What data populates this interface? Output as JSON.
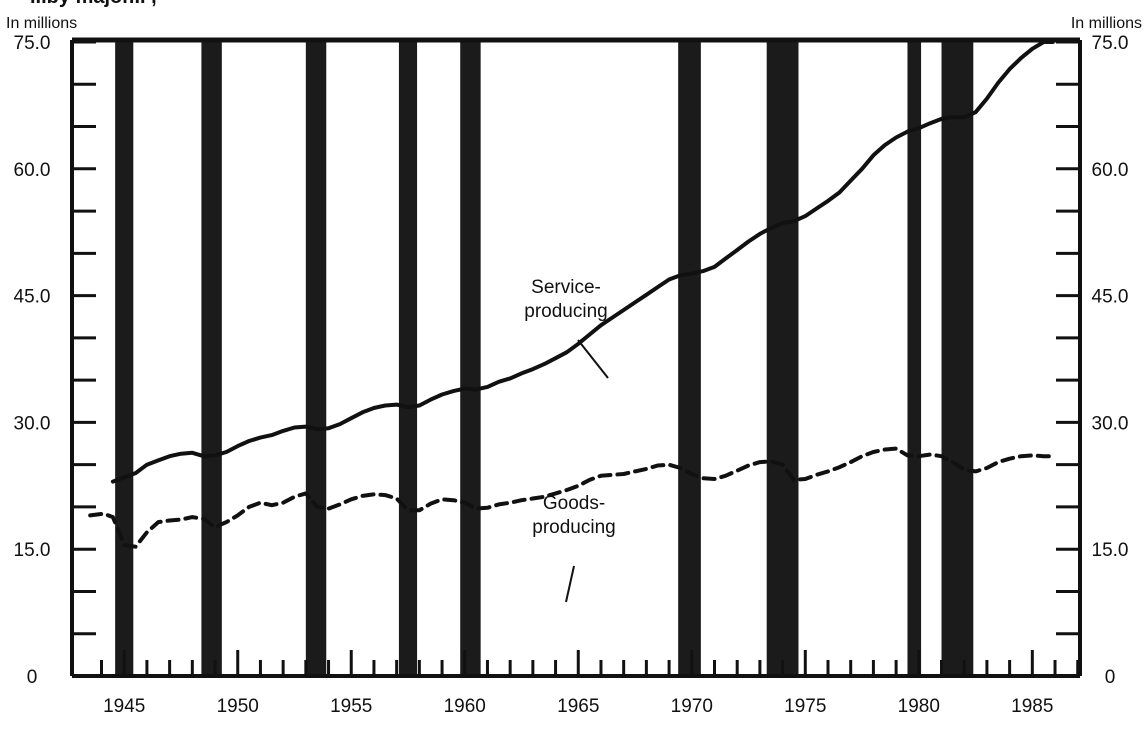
{
  "title_fragment": "...by major... ,",
  "chart_data": {
    "type": "line",
    "y_unit_left": "In millions",
    "y_unit_right": "In millions",
    "ylim": [
      0,
      75
    ],
    "y_ticks_labeled": [
      "0",
      "15.0",
      "30.0",
      "45.0",
      "60.0",
      "75.0"
    ],
    "x_ticks_labeled": [
      "1945",
      "1950",
      "1955",
      "1960",
      "1965",
      "1970",
      "1975",
      "1980",
      "1985"
    ],
    "xlim": [
      1943.2,
      1987.6
    ],
    "recessions": [
      {
        "start": 1945.1,
        "end": 1945.9
      },
      {
        "start": 1948.9,
        "end": 1949.8
      },
      {
        "start": 1953.5,
        "end": 1954.4
      },
      {
        "start": 1957.6,
        "end": 1958.4
      },
      {
        "start": 1960.3,
        "end": 1961.2
      },
      {
        "start": 1969.9,
        "end": 1970.9
      },
      {
        "start": 1973.8,
        "end": 1975.2
      },
      {
        "start": 1980.0,
        "end": 1980.6
      },
      {
        "start": 1981.5,
        "end": 1982.9
      }
    ],
    "series": [
      {
        "name": "Service-producing",
        "style": "solid",
        "label": "Service-\nproducing",
        "points": [
          [
            1945.0,
            23.0
          ],
          [
            1945.5,
            23.5
          ],
          [
            1946.0,
            24.0
          ],
          [
            1946.5,
            25.0
          ],
          [
            1947.0,
            25.5
          ],
          [
            1947.5,
            26.0
          ],
          [
            1948.0,
            26.3
          ],
          [
            1948.5,
            26.4
          ],
          [
            1949.0,
            26.0
          ],
          [
            1949.5,
            26.1
          ],
          [
            1950.0,
            26.5
          ],
          [
            1950.5,
            27.2
          ],
          [
            1951.0,
            27.8
          ],
          [
            1951.5,
            28.2
          ],
          [
            1952.0,
            28.5
          ],
          [
            1952.5,
            29.0
          ],
          [
            1953.0,
            29.4
          ],
          [
            1953.5,
            29.5
          ],
          [
            1954.0,
            29.2
          ],
          [
            1954.5,
            29.3
          ],
          [
            1955.0,
            29.8
          ],
          [
            1955.5,
            30.5
          ],
          [
            1956.0,
            31.2
          ],
          [
            1956.5,
            31.7
          ],
          [
            1957.0,
            32.0
          ],
          [
            1957.5,
            32.1
          ],
          [
            1958.0,
            31.8
          ],
          [
            1958.5,
            32.0
          ],
          [
            1959.0,
            32.7
          ],
          [
            1959.5,
            33.3
          ],
          [
            1960.0,
            33.7
          ],
          [
            1960.5,
            34.0
          ],
          [
            1961.0,
            33.9
          ],
          [
            1961.5,
            34.2
          ],
          [
            1962.0,
            34.8
          ],
          [
            1962.5,
            35.2
          ],
          [
            1963.0,
            35.8
          ],
          [
            1963.5,
            36.3
          ],
          [
            1964.0,
            36.9
          ],
          [
            1964.5,
            37.6
          ],
          [
            1965.0,
            38.3
          ],
          [
            1965.5,
            39.3
          ],
          [
            1966.0,
            40.4
          ],
          [
            1966.5,
            41.5
          ],
          [
            1967.0,
            42.4
          ],
          [
            1967.5,
            43.3
          ],
          [
            1968.0,
            44.2
          ],
          [
            1968.5,
            45.1
          ],
          [
            1969.0,
            46.0
          ],
          [
            1969.5,
            46.9
          ],
          [
            1970.0,
            47.4
          ],
          [
            1970.5,
            47.6
          ],
          [
            1971.0,
            47.9
          ],
          [
            1971.5,
            48.4
          ],
          [
            1972.0,
            49.4
          ],
          [
            1972.5,
            50.4
          ],
          [
            1973.0,
            51.4
          ],
          [
            1973.5,
            52.3
          ],
          [
            1974.0,
            53.0
          ],
          [
            1974.5,
            53.6
          ],
          [
            1975.0,
            53.8
          ],
          [
            1975.5,
            54.4
          ],
          [
            1976.0,
            55.3
          ],
          [
            1976.5,
            56.2
          ],
          [
            1977.0,
            57.2
          ],
          [
            1977.5,
            58.6
          ],
          [
            1978.0,
            60.0
          ],
          [
            1978.5,
            61.6
          ],
          [
            1979.0,
            62.8
          ],
          [
            1979.5,
            63.7
          ],
          [
            1980.0,
            64.4
          ],
          [
            1980.5,
            64.8
          ],
          [
            1981.0,
            65.4
          ],
          [
            1981.5,
            65.9
          ],
          [
            1982.0,
            66.1
          ],
          [
            1982.5,
            66.1
          ],
          [
            1983.0,
            66.7
          ],
          [
            1983.5,
            68.3
          ],
          [
            1984.0,
            70.2
          ],
          [
            1984.5,
            71.8
          ],
          [
            1985.0,
            73.1
          ],
          [
            1985.5,
            74.2
          ],
          [
            1986.0,
            75.0
          ],
          [
            1986.4,
            75.0
          ]
        ]
      },
      {
        "name": "Goods-producing",
        "style": "dashed",
        "label": "Goods-\nproducing",
        "points": [
          [
            1944.0,
            19.0
          ],
          [
            1944.6,
            19.2
          ],
          [
            1945.0,
            18.8
          ],
          [
            1945.5,
            15.5
          ],
          [
            1946.0,
            15.3
          ],
          [
            1946.5,
            17.0
          ],
          [
            1947.0,
            18.2
          ],
          [
            1947.5,
            18.4
          ],
          [
            1948.0,
            18.5
          ],
          [
            1948.5,
            18.8
          ],
          [
            1949.0,
            18.6
          ],
          [
            1949.5,
            17.6
          ],
          [
            1950.0,
            18.2
          ],
          [
            1950.5,
            19.0
          ],
          [
            1951.0,
            20.0
          ],
          [
            1951.5,
            20.5
          ],
          [
            1952.0,
            20.2
          ],
          [
            1952.5,
            20.5
          ],
          [
            1953.0,
            21.2
          ],
          [
            1953.5,
            21.6
          ],
          [
            1954.0,
            20.0
          ],
          [
            1954.5,
            19.8
          ],
          [
            1955.0,
            20.3
          ],
          [
            1955.5,
            20.9
          ],
          [
            1956.0,
            21.3
          ],
          [
            1956.5,
            21.5
          ],
          [
            1957.0,
            21.4
          ],
          [
            1957.5,
            21.0
          ],
          [
            1958.0,
            19.6
          ],
          [
            1958.5,
            19.6
          ],
          [
            1959.0,
            20.4
          ],
          [
            1959.5,
            20.9
          ],
          [
            1960.0,
            20.8
          ],
          [
            1960.5,
            20.5
          ],
          [
            1961.0,
            19.8
          ],
          [
            1961.5,
            19.9
          ],
          [
            1962.0,
            20.3
          ],
          [
            1962.5,
            20.5
          ],
          [
            1963.0,
            20.8
          ],
          [
            1963.5,
            21.0
          ],
          [
            1964.0,
            21.2
          ],
          [
            1964.5,
            21.6
          ],
          [
            1965.0,
            22.0
          ],
          [
            1965.5,
            22.5
          ],
          [
            1966.0,
            23.2
          ],
          [
            1966.5,
            23.7
          ],
          [
            1967.0,
            23.8
          ],
          [
            1967.5,
            23.9
          ],
          [
            1968.0,
            24.2
          ],
          [
            1968.5,
            24.5
          ],
          [
            1969.0,
            24.9
          ],
          [
            1969.5,
            25.0
          ],
          [
            1970.0,
            24.6
          ],
          [
            1970.5,
            23.9
          ],
          [
            1971.0,
            23.4
          ],
          [
            1971.5,
            23.3
          ],
          [
            1972.0,
            23.7
          ],
          [
            1972.5,
            24.3
          ],
          [
            1973.0,
            24.9
          ],
          [
            1973.5,
            25.3
          ],
          [
            1974.0,
            25.4
          ],
          [
            1974.5,
            25.0
          ],
          [
            1975.0,
            23.2
          ],
          [
            1975.5,
            23.3
          ],
          [
            1976.0,
            23.8
          ],
          [
            1976.5,
            24.2
          ],
          [
            1977.0,
            24.7
          ],
          [
            1977.5,
            25.3
          ],
          [
            1978.0,
            26.0
          ],
          [
            1978.5,
            26.5
          ],
          [
            1979.0,
            26.8
          ],
          [
            1979.5,
            26.9
          ],
          [
            1980.0,
            26.1
          ],
          [
            1980.5,
            26.0
          ],
          [
            1981.0,
            26.2
          ],
          [
            1981.5,
            26.0
          ],
          [
            1982.0,
            25.3
          ],
          [
            1982.5,
            24.4
          ],
          [
            1983.0,
            24.2
          ],
          [
            1983.5,
            24.6
          ],
          [
            1984.0,
            25.3
          ],
          [
            1984.5,
            25.7
          ],
          [
            1985.0,
            26.0
          ],
          [
            1985.5,
            26.1
          ],
          [
            1986.0,
            26.0
          ],
          [
            1986.4,
            26.0
          ]
        ]
      }
    ],
    "annotations": [
      {
        "text_lines": [
          "Service-",
          "producing"
        ],
        "series": "Service-producing"
      },
      {
        "text_lines": [
          "Goods-",
          "producing"
        ],
        "series": "Goods-producing"
      }
    ],
    "grid": false,
    "legend": "none"
  }
}
